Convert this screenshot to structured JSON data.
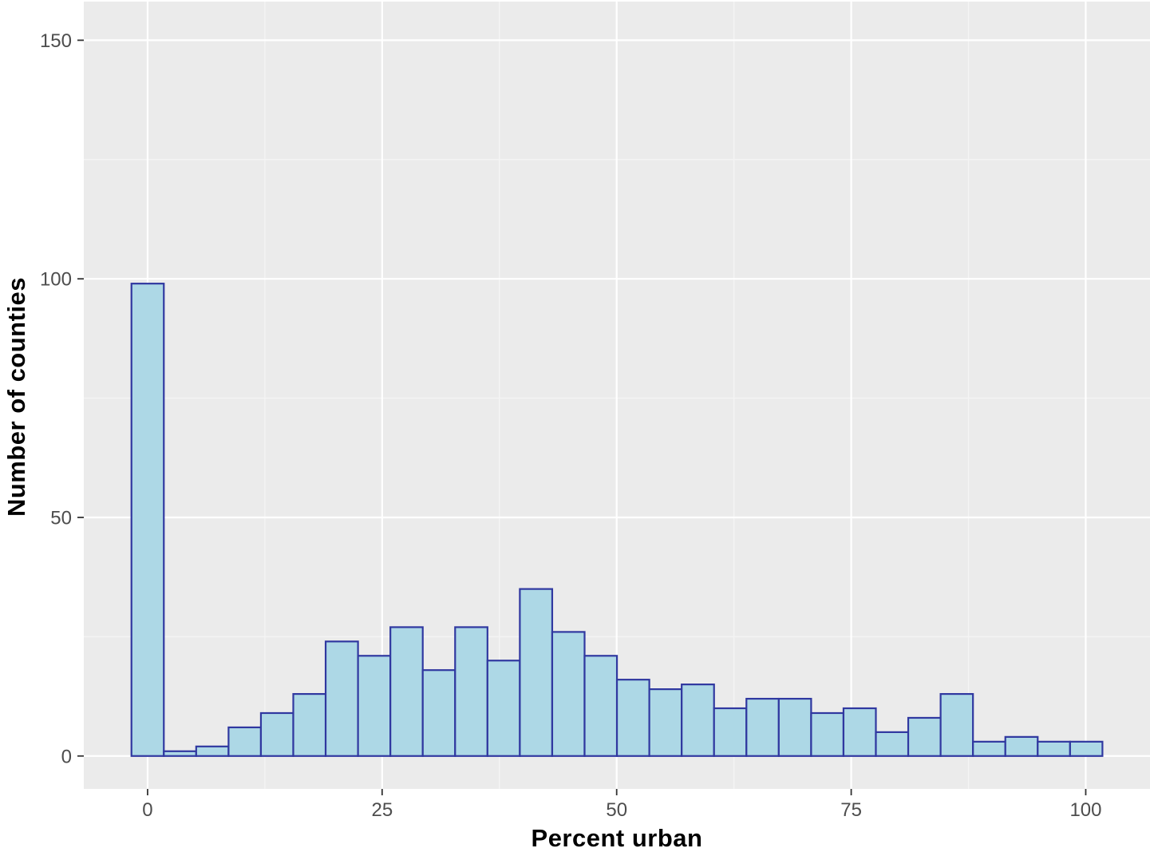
{
  "figure": {
    "kind": "ggplot-style histogram screenshot",
    "title": ""
  },
  "chart_data": {
    "type": "bar",
    "subtype": "histogram",
    "title": "",
    "xlabel": "Percent urban",
    "ylabel": "Number of counties",
    "bin_start": -1.72,
    "bin_width": 3.45,
    "counts": [
      99,
      1,
      2,
      6,
      9,
      13,
      24,
      21,
      27,
      18,
      27,
      20,
      35,
      26,
      21,
      16,
      14,
      15,
      10,
      12,
      12,
      9,
      10,
      5,
      8,
      13,
      3,
      4,
      3,
      3
    ],
    "x_ticks": [
      0,
      25,
      50,
      75,
      100
    ],
    "y_ticks": [
      0,
      50,
      100,
      150
    ],
    "x_minor_ticks": [
      12.5,
      37.5,
      62.5,
      87.5
    ],
    "y_minor_ticks": [
      25,
      75,
      125
    ],
    "xlim": [
      -6.8,
      106.85
    ],
    "ylim": [
      -6.9,
      158.1
    ],
    "grid": "major-and-minor",
    "legend": "none",
    "colors": {
      "bar_fill": "#ADD8E6",
      "bar_border": "#3038A0",
      "panel_bg": "#EBEBEB",
      "grid_major": "#FFFFFF",
      "grid_minor": "#F4F4F4",
      "tick_label": "#4D4D4D",
      "tick_mark": "#333333",
      "axis_title": "#000000",
      "outer_bg": "#FFFFFF"
    }
  }
}
